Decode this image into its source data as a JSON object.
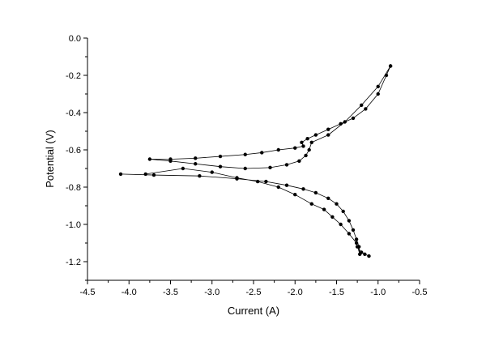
{
  "chart_data": {
    "type": "scatter",
    "title": "",
    "xlabel": "Current (A)",
    "ylabel": "Potential (V)",
    "xlim": [
      -4.5,
      -0.5
    ],
    "ylim": [
      -1.3,
      0.0
    ],
    "xticks": [
      -4.5,
      -4.0,
      -3.5,
      -3.0,
      -2.5,
      -2.0,
      -1.5,
      -1.0,
      -0.5
    ],
    "xtick_labels": [
      "-4.5",
      "-4.0",
      "-3.5",
      "-3.0",
      "-2.5",
      "-2.0",
      "-1.5",
      "-1.0",
      "-0.5"
    ],
    "yticks": [
      0.0,
      -0.2,
      -0.4,
      -0.6,
      -0.8,
      -1.0,
      -1.2
    ],
    "ytick_labels": [
      "0.0",
      "-0.2",
      "-0.4",
      "-0.6",
      "-0.8",
      "-1.0",
      "-1.2"
    ],
    "grid": false,
    "legend": "none",
    "series": [
      {
        "points": [
          [
            -0.85,
            -0.15
          ],
          [
            -0.9,
            -0.2
          ],
          [
            -1.0,
            -0.3
          ],
          [
            -1.15,
            -0.38
          ],
          [
            -1.3,
            -0.43
          ],
          [
            -1.45,
            -0.46
          ],
          [
            -1.6,
            -0.49
          ],
          [
            -1.75,
            -0.52
          ],
          [
            -1.85,
            -0.54
          ],
          [
            -1.92,
            -0.56
          ],
          [
            -1.9,
            -0.58
          ],
          [
            -2.0,
            -0.59
          ],
          [
            -2.2,
            -0.6
          ],
          [
            -2.4,
            -0.615
          ],
          [
            -2.6,
            -0.625
          ],
          [
            -2.9,
            -0.635
          ],
          [
            -3.2,
            -0.645
          ],
          [
            -3.5,
            -0.65
          ],
          [
            -3.75,
            -0.65
          ],
          [
            -3.5,
            -0.66
          ],
          [
            -3.2,
            -0.675
          ],
          [
            -2.9,
            -0.69
          ],
          [
            -2.6,
            -0.7
          ],
          [
            -2.3,
            -0.695
          ],
          [
            -2.1,
            -0.68
          ],
          [
            -1.95,
            -0.66
          ],
          [
            -1.87,
            -0.63
          ],
          [
            -1.83,
            -0.6
          ],
          [
            -1.8,
            -0.56
          ],
          [
            -1.6,
            -0.52
          ],
          [
            -1.4,
            -0.45
          ],
          [
            -1.2,
            -0.36
          ],
          [
            -1.0,
            -0.26
          ],
          [
            -0.85,
            -0.15
          ]
        ]
      },
      {
        "points": [
          [
            -4.1,
            -0.73
          ],
          [
            -3.7,
            -0.735
          ],
          [
            -3.15,
            -0.74
          ],
          [
            -2.7,
            -0.755
          ],
          [
            -2.35,
            -0.77
          ],
          [
            -2.1,
            -0.79
          ],
          [
            -1.9,
            -0.81
          ],
          [
            -1.75,
            -0.83
          ],
          [
            -1.6,
            -0.86
          ],
          [
            -1.5,
            -0.89
          ],
          [
            -1.42,
            -0.93
          ],
          [
            -1.35,
            -0.98
          ],
          [
            -1.3,
            -1.03
          ],
          [
            -1.26,
            -1.08
          ],
          [
            -1.23,
            -1.12
          ],
          [
            -1.22,
            -1.16
          ],
          [
            -1.26,
            -1.1
          ],
          [
            -1.35,
            -1.05
          ],
          [
            -1.45,
            -1.0
          ],
          [
            -1.55,
            -0.96
          ],
          [
            -1.65,
            -0.92
          ],
          [
            -1.8,
            -0.89
          ],
          [
            -2.0,
            -0.84
          ],
          [
            -2.2,
            -0.8
          ],
          [
            -2.45,
            -0.77
          ],
          [
            -2.7,
            -0.75
          ],
          [
            -3.0,
            -0.72
          ],
          [
            -3.35,
            -0.7
          ],
          [
            -3.8,
            -0.73
          ]
        ]
      },
      {
        "points": [
          [
            -1.25,
            -1.12
          ],
          [
            -1.2,
            -1.15
          ],
          [
            -1.16,
            -1.16
          ],
          [
            -1.11,
            -1.17
          ]
        ]
      }
    ]
  }
}
